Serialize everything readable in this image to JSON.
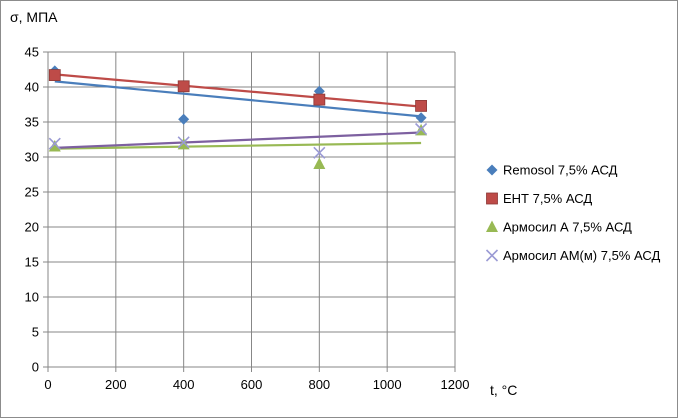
{
  "chart_data": {
    "type": "scatter",
    "ylabel": "σ, МПА",
    "xlabel": "t, °С",
    "xlim": [
      0,
      1200
    ],
    "ylim": [
      0,
      45
    ],
    "x_ticks": [
      0,
      200,
      400,
      600,
      800,
      1000,
      1200
    ],
    "y_ticks": [
      0,
      5,
      10,
      15,
      20,
      25,
      30,
      35,
      40,
      45
    ],
    "grid": true,
    "legend_position": "right",
    "series": [
      {
        "name": "Remosol 7,5% АСД",
        "marker": "diamond",
        "color": "#4a7ebb",
        "points": [
          [
            20,
            42.3
          ],
          [
            400,
            35.4
          ],
          [
            800,
            39.4
          ],
          [
            1100,
            35.6
          ]
        ],
        "trendline": [
          [
            20,
            40.8
          ],
          [
            1100,
            35.8
          ]
        ]
      },
      {
        "name": "ЕНТ 7,5% АСД",
        "marker": "square",
        "color": "#be4b48",
        "points": [
          [
            20,
            41.7
          ],
          [
            400,
            40.1
          ],
          [
            800,
            38.2
          ],
          [
            1100,
            37.3
          ]
        ],
        "trendline": [
          [
            20,
            41.8
          ],
          [
            1100,
            37.2
          ]
        ]
      },
      {
        "name": "Армосил А 7,5% АСД",
        "marker": "triangle",
        "color": "#98b954",
        "points": [
          [
            20,
            31.5
          ],
          [
            400,
            31.8
          ],
          [
            800,
            29.0
          ],
          [
            1100,
            33.8
          ]
        ],
        "trendline": [
          [
            20,
            31.2
          ],
          [
            1100,
            32.0
          ]
        ]
      },
      {
        "name": "Армосил АМ(м) 7,5% АСД",
        "marker": "x",
        "color": "#9a9ad4",
        "trend_color": "#7d60a0",
        "points": [
          [
            20,
            31.9
          ],
          [
            400,
            32.1
          ],
          [
            800,
            30.6
          ],
          [
            1100,
            34.0
          ]
        ],
        "trendline": [
          [
            20,
            31.3
          ],
          [
            1100,
            33.5
          ]
        ]
      }
    ]
  }
}
